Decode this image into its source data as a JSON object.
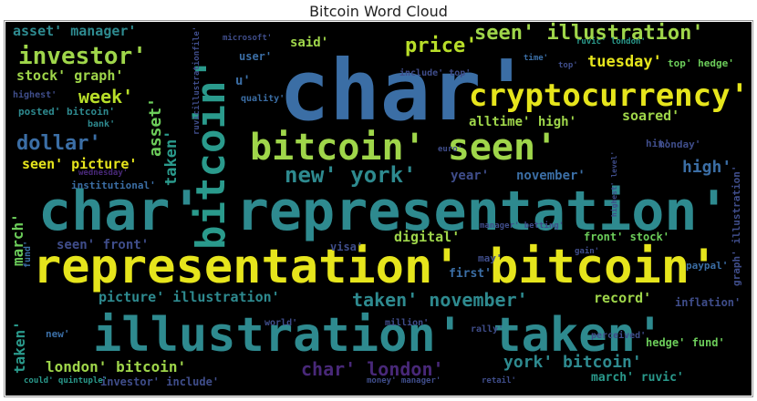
{
  "title": "Bitcoin Word Cloud",
  "palette": {
    "background": "#000000",
    "yellow": "#e6e51c",
    "green": "#9fd64a",
    "lime": "#6ccd5a",
    "teal": "#2a9a8c",
    "cyan": "#2e8a8f",
    "blue": "#3b6ea5",
    "indigo": "#3f4d8a",
    "purple": "#482878"
  },
  "words": [
    {
      "text": "char'",
      "color": "#3b6ea5"
    },
    {
      "text": "char' representation'",
      "color": "#2e8a8f"
    },
    {
      "text": "representation' bitcoin'",
      "color": "#e6e51c"
    },
    {
      "text": "illustration' taken'",
      "color": "#2e8a8f"
    },
    {
      "text": "bitcoin' seen'",
      "color": "#9fd64a"
    },
    {
      "text": "cryptocurrency'",
      "color": "#e6e51c"
    },
    {
      "text": "bitcoin'",
      "color": "#2a9a8c"
    },
    {
      "text": "new' york'",
      "color": "#2e8a8f"
    },
    {
      "text": "investor'",
      "color": "#9fd64a"
    },
    {
      "text": "price'",
      "color": "#b8de29"
    },
    {
      "text": "seen' illustration'",
      "color": "#9fd64a"
    },
    {
      "text": "asset' manager'",
      "color": "#2e8a8f"
    },
    {
      "text": "stock' graph'",
      "color": "#9fd64a"
    },
    {
      "text": "week'",
      "color": "#b8de29"
    },
    {
      "text": "dollar'",
      "color": "#3b6ea5"
    },
    {
      "text": "tuesday'",
      "color": "#e6e51c"
    },
    {
      "text": "soared'",
      "color": "#9fd64a"
    },
    {
      "text": "alltime' high'",
      "color": "#9fd64a"
    },
    {
      "text": "high'",
      "color": "#3b6ea5"
    },
    {
      "text": "seen' picture'",
      "color": "#e6e51c"
    },
    {
      "text": "taken' november'",
      "color": "#2e8a8f"
    },
    {
      "text": "picture' illustration'",
      "color": "#2e8a8f"
    },
    {
      "text": "record'",
      "color": "#9fd64a"
    },
    {
      "text": "london' bitcoin'",
      "color": "#9fd64a"
    },
    {
      "text": "char' london'",
      "color": "#482878"
    },
    {
      "text": "york' bitcoin'",
      "color": "#2e8a8f"
    },
    {
      "text": "digital'",
      "color": "#9fd64a"
    },
    {
      "text": "year'",
      "color": "#3f4d8a"
    },
    {
      "text": "november'",
      "color": "#3b6ea5"
    },
    {
      "text": "seen' front'",
      "color": "#3f4d8a"
    },
    {
      "text": "front' stock'",
      "color": "#6ccd5a"
    },
    {
      "text": "visa'",
      "color": "#3f4d8a"
    },
    {
      "text": "first'",
      "color": "#3b6ea5"
    },
    {
      "text": "march' ruvic'",
      "color": "#2a9a8c"
    },
    {
      "text": "hedge' fund'",
      "color": "#6ccd5a"
    },
    {
      "text": "investor' include'",
      "color": "#3f4d8a"
    },
    {
      "text": "taken'",
      "color": "#2a9a8c"
    },
    {
      "text": "march'",
      "color": "#6ccd5a"
    },
    {
      "text": "asset'",
      "color": "#6ccd5a"
    },
    {
      "text": "said'",
      "color": "#9fd64a"
    },
    {
      "text": "user'",
      "color": "#3b6ea5"
    },
    {
      "text": "top' hedge'",
      "color": "#6ccd5a"
    },
    {
      "text": "monday'",
      "color": "#3f4d8a"
    },
    {
      "text": "posted' bitcoin'",
      "color": "#2e8a8f"
    },
    {
      "text": "highest'",
      "color": "#3f4d8a"
    },
    {
      "text": "bank'",
      "color": "#2e8a8f"
    },
    {
      "text": "institutional'",
      "color": "#3b6ea5"
    },
    {
      "text": "wednesday'",
      "color": "#482878"
    },
    {
      "text": "inflation'",
      "color": "#3f4d8a"
    },
    {
      "text": "paypal'",
      "color": "#3b6ea5"
    },
    {
      "text": "ruvic' london'",
      "color": "#2a9a8c"
    },
    {
      "text": "may'",
      "color": "#3f4d8a"
    },
    {
      "text": "million'",
      "color": "#3f4d8a"
    },
    {
      "text": "rally'",
      "color": "#3f4d8a"
    },
    {
      "text": "world'",
      "color": "#3f4d8a"
    },
    {
      "text": "new'",
      "color": "#3b6ea5"
    },
    {
      "text": "could' quintuple'",
      "color": "#2a9a8c"
    },
    {
      "text": "money' manager'",
      "color": "#3f4d8a"
    },
    {
      "text": "retail'",
      "color": "#3f4d8a"
    },
    {
      "text": "euro'",
      "color": "#3f4d8a"
    },
    {
      "text": "graph' illustration'",
      "color": "#3f4d8a"
    },
    {
      "text": "fund'",
      "color": "#3b6ea5"
    },
    {
      "text": "include' top'",
      "color": "#3f4d8a"
    },
    {
      "text": "quality'",
      "color": "#3b6ea5"
    },
    {
      "text": "microsoft'",
      "color": "#3f4d8a"
    },
    {
      "text": "perceived'",
      "color": "#3f4d8a"
    },
    {
      "text": "hit'",
      "color": "#3f4d8a"
    },
    {
      "text": "u'",
      "color": "#3b6ea5"
    },
    {
      "text": "ruvicillustrationfile'",
      "color": "#3f4d8a"
    },
    {
      "text": "manager' betting'",
      "color": "#3f4d8a"
    },
    {
      "text": "highest' level'",
      "color": "#3f4d8a"
    },
    {
      "text": "time'",
      "color": "#3b6ea5"
    },
    {
      "text": "gain'",
      "color": "#3f4d8a"
    },
    {
      "text": "taken'",
      "color": "#2a9a8c"
    },
    {
      "text": "top'",
      "color": "#3f4d8a"
    }
  ]
}
